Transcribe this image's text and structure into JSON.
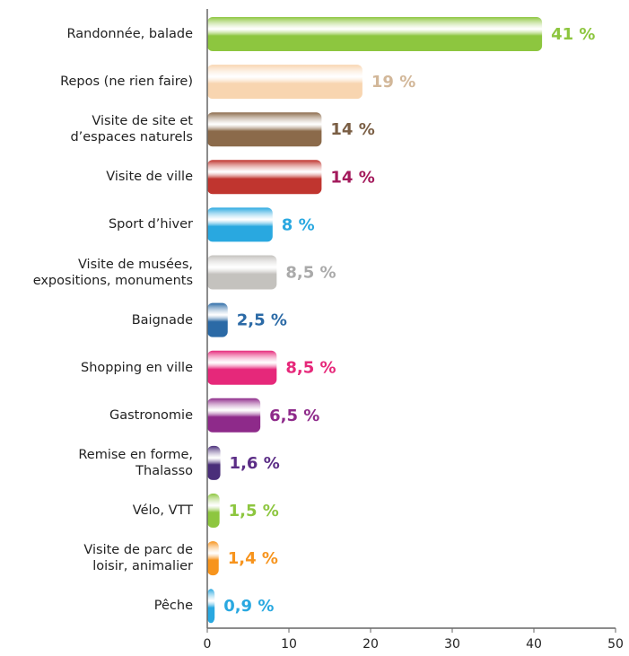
{
  "chart_data": {
    "type": "bar",
    "orientation": "horizontal",
    "categories": [
      "Randonnée, balade",
      "Repos (ne rien faire)",
      "Visite de site et\nd’espaces naturels",
      "Visite de ville",
      "Sport d’hiver",
      "Visite de musées,\nexpositions, monuments",
      "Baignade",
      "Shopping en ville",
      "Gastronomie",
      "Remise en forme,\nThalasso",
      "Vélo, VTT",
      "Visite de parc de\nloisir, animalier",
      "Pêche"
    ],
    "values": [
      41,
      19,
      14,
      14,
      8,
      8.5,
      2.5,
      8.5,
      6.5,
      1.6,
      1.5,
      1.4,
      0.9
    ],
    "value_labels": [
      "41 %",
      "19 %",
      "14 %",
      "14 %",
      "8 %",
      "8,5 %",
      "2,5 %",
      "8,5 %",
      "6,5 %",
      "1,6 %",
      "1,5 %",
      "1,4 %",
      "0,9 %"
    ],
    "colors": [
      "#8dc63f",
      "#f8d5b0",
      "#8b6a4a",
      "#c0352f",
      "#29a8e0",
      "#c4c2be",
      "#2b6aa6",
      "#e6287a",
      "#8e2a8a",
      "#4a2e7a",
      "#8dc63f",
      "#f7941d",
      "#29a8e0"
    ],
    "label_colors": [
      "#8dc63f",
      "#d2b799",
      "#7a5e44",
      "#a3195b",
      "#29a8e0",
      "#aaaaaa",
      "#2b6aa6",
      "#e6287a",
      "#8e2a8a",
      "#5b2d86",
      "#8dc63f",
      "#f7941d",
      "#29a8e0"
    ],
    "xlim": [
      0,
      50
    ],
    "xticks": [
      0,
      10,
      20,
      30,
      40,
      50
    ]
  }
}
